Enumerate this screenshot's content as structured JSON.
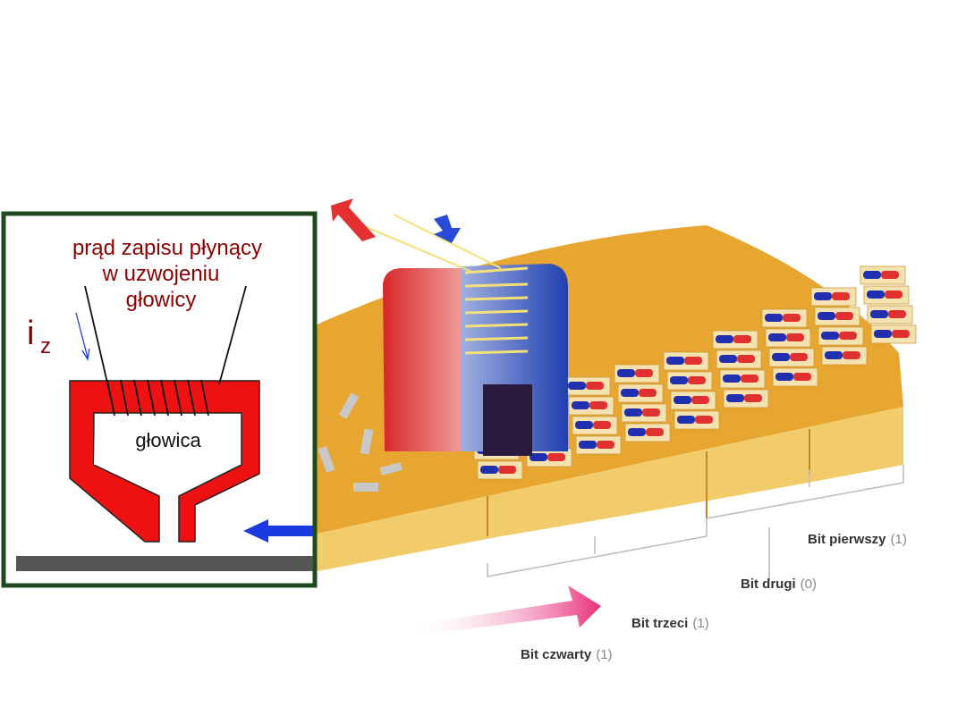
{
  "inset": {
    "label_lines": [
      "prąd zapisu płynący",
      "w uzwojeniu",
      "głowicy"
    ],
    "current_symbol": "i",
    "current_subscript": "z",
    "head_label": "głowica"
  },
  "bits": [
    {
      "name": "Bit pierwszy",
      "value": "(1)"
    },
    {
      "name": "Bit drugi",
      "value": "(0)"
    },
    {
      "name": "Bit trzeci",
      "value": "(1)"
    },
    {
      "name": "Bit czwarty",
      "value": "(1)"
    }
  ]
}
